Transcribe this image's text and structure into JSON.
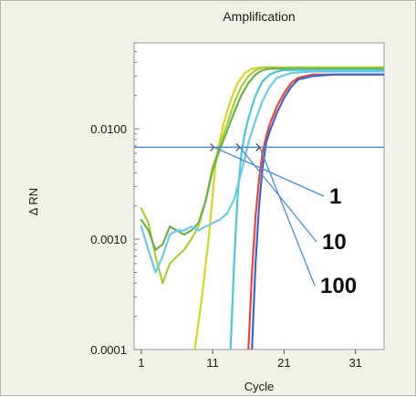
{
  "chart_data": {
    "type": "line",
    "title": "Amplification",
    "xlabel": "Cycle",
    "ylabel": "Δ RN",
    "x_scale": "linear",
    "y_scale": "log",
    "xlim": [
      0,
      35
    ],
    "ylim": [
      0.0001,
      0.06
    ],
    "x_ticks": [
      1,
      11,
      21,
      31
    ],
    "y_ticks": [
      {
        "value": 0.0001,
        "label": "0.0001"
      },
      {
        "value": 0.001,
        "label": "0.0010"
      },
      {
        "value": 0.01,
        "label": "0.0100"
      }
    ],
    "threshold": 0.0068,
    "threshold_color": "#4a8fd6",
    "grid": false,
    "legend": "none",
    "series": [
      {
        "color": "#d6d62a",
        "x": [
          8.5,
          9.5,
          10.5,
          11,
          11.5,
          12.5,
          13.5,
          14.5,
          15.5,
          16.5,
          17.5,
          19,
          21,
          25,
          35
        ],
        "y": [
          0.0001,
          0.0003,
          0.0011,
          0.0025,
          0.0055,
          0.011,
          0.018,
          0.026,
          0.032,
          0.035,
          0.036,
          0.036,
          0.036,
          0.036,
          0.036
        ]
      },
      {
        "color": "#a8cf3a",
        "x": [
          1,
          2,
          3,
          4,
          5,
          6,
          7,
          8,
          9,
          10,
          11,
          12,
          13,
          14,
          15,
          16,
          17,
          18,
          20,
          25,
          35
        ],
        "y": [
          0.0019,
          0.0014,
          0.0007,
          0.0004,
          0.0006,
          0.0007,
          0.0008,
          0.001,
          0.0013,
          0.0022,
          0.0045,
          0.007,
          0.011,
          0.017,
          0.024,
          0.03,
          0.034,
          0.036,
          0.036,
          0.036,
          0.036
        ]
      },
      {
        "color": "#6cb04a",
        "x": [
          1,
          2,
          3,
          4,
          5,
          6,
          7,
          8,
          9,
          10,
          11,
          12,
          13,
          14,
          15,
          16,
          17,
          18,
          19,
          21,
          25,
          35
        ],
        "y": [
          0.0015,
          0.0012,
          0.0008,
          0.0009,
          0.0013,
          0.0012,
          0.0011,
          0.0012,
          0.0014,
          0.0022,
          0.0042,
          0.0065,
          0.0095,
          0.014,
          0.02,
          0.026,
          0.031,
          0.034,
          0.035,
          0.035,
          0.035,
          0.035
        ]
      },
      {
        "color": "#4ec6d8",
        "x": [
          13.5,
          14,
          14.5,
          15,
          15.5,
          16,
          17,
          18,
          19,
          20,
          21,
          25,
          35
        ],
        "y": [
          0.0001,
          0.0006,
          0.0025,
          0.0058,
          0.009,
          0.0125,
          0.02,
          0.027,
          0.031,
          0.033,
          0.034,
          0.034,
          0.034
        ]
      },
      {
        "color": "#6fc8e8",
        "x": [
          1,
          2,
          3,
          4,
          5,
          6,
          7,
          8,
          9,
          10,
          11,
          12,
          13,
          14,
          15,
          16,
          17,
          18,
          19,
          20,
          22,
          25,
          35
        ],
        "y": [
          0.0013,
          0.0008,
          0.0005,
          0.0007,
          0.0011,
          0.0012,
          0.0012,
          0.0013,
          0.0012,
          0.0013,
          0.0014,
          0.0015,
          0.0017,
          0.0023,
          0.004,
          0.0075,
          0.012,
          0.018,
          0.024,
          0.029,
          0.032,
          0.033,
          0.033
        ]
      },
      {
        "color": "#e8463a",
        "x": [
          16,
          16.5,
          17,
          17.5,
          18,
          18.5,
          19,
          20,
          21,
          22,
          23,
          25,
          28,
          35
        ],
        "y": [
          0.0001,
          0.0005,
          0.0016,
          0.0035,
          0.0062,
          0.0085,
          0.011,
          0.016,
          0.021,
          0.026,
          0.029,
          0.031,
          0.031,
          0.031
        ]
      },
      {
        "color": "#3f66c8",
        "x": [
          16.5,
          17,
          17.5,
          18,
          18.5,
          19,
          20,
          21,
          22,
          23,
          25,
          28,
          35
        ],
        "y": [
          0.0001,
          0.0006,
          0.002,
          0.0045,
          0.0075,
          0.0095,
          0.014,
          0.019,
          0.024,
          0.028,
          0.03,
          0.031,
          0.031
        ]
      }
    ],
    "annotations": [
      {
        "text": "1",
        "target_x": 11.2
      },
      {
        "text": "10",
        "target_x": 14.8
      },
      {
        "text": "100",
        "target_x": 17.6
      }
    ]
  }
}
